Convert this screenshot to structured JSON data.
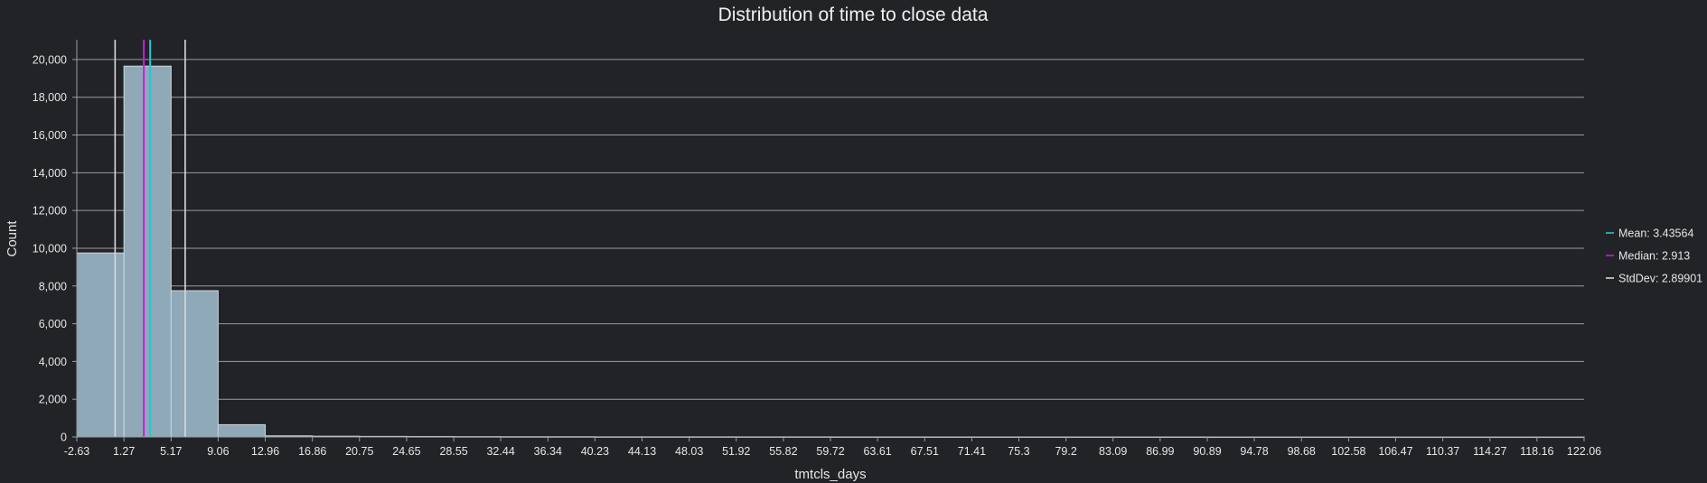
{
  "chart_data": {
    "type": "bar",
    "title": "Distribution of time to close data",
    "xlabel": "tmtcls_days",
    "ylabel": "Count",
    "ylim": [
      0,
      21000
    ],
    "xlim": [
      -2.63,
      122.06
    ],
    "grid": true,
    "legend_placement": "right",
    "x_ticks": [
      "-2.63",
      "1.27",
      "5.17",
      "9.06",
      "12.96",
      "16.86",
      "20.75",
      "24.65",
      "28.55",
      "32.44",
      "36.34",
      "40.23",
      "44.13",
      "48.03",
      "51.92",
      "55.82",
      "59.72",
      "63.61",
      "67.51",
      "71.41",
      "75.3",
      "79.2",
      "83.09",
      "86.99",
      "90.89",
      "94.78",
      "98.68",
      "102.58",
      "106.47",
      "110.37",
      "114.27",
      "118.16",
      "122.06"
    ],
    "y_ticks": [
      "0",
      "2,000",
      "4,000",
      "6,000",
      "8,000",
      "10,000",
      "12,000",
      "14,000",
      "16,000",
      "18,000",
      "20,000"
    ],
    "y_tick_values": [
      0,
      2000,
      4000,
      6000,
      8000,
      10000,
      12000,
      14000,
      16000,
      18000,
      20000
    ],
    "bin_edges": [
      -2.63,
      1.27,
      5.17,
      9.06,
      12.96,
      16.86,
      20.75,
      24.65,
      28.55,
      32.44,
      36.34,
      40.23,
      44.13,
      48.03,
      51.92,
      55.82,
      59.72,
      63.61,
      67.51,
      71.41,
      75.3,
      79.2,
      83.09,
      86.99,
      90.89,
      94.78,
      98.68,
      102.58,
      106.47,
      110.37,
      114.27,
      118.16,
      122.06
    ],
    "values": [
      9750,
      19650,
      7750,
      650,
      60,
      40,
      30,
      25,
      20,
      15,
      15,
      10,
      10,
      10,
      8,
      8,
      6,
      6,
      5,
      5,
      5,
      4,
      4,
      4,
      3,
      3,
      3,
      3,
      2,
      2,
      2,
      2
    ],
    "bar_color": "#8fa9b8",
    "bar_edge_color": "#c9d6de",
    "stats": {
      "mean": 3.43564,
      "median": 2.913,
      "stddev": 2.89901,
      "stddev_lines": [
        0.53663,
        6.33465
      ]
    },
    "legend": [
      {
        "label": "Mean: 3.43564",
        "color": "#1ec8d6"
      },
      {
        "label": "Median: 2.913",
        "color": "#c81ee0"
      },
      {
        "label": "StdDev: 2.89901",
        "color": "#d9d9d9"
      }
    ]
  }
}
